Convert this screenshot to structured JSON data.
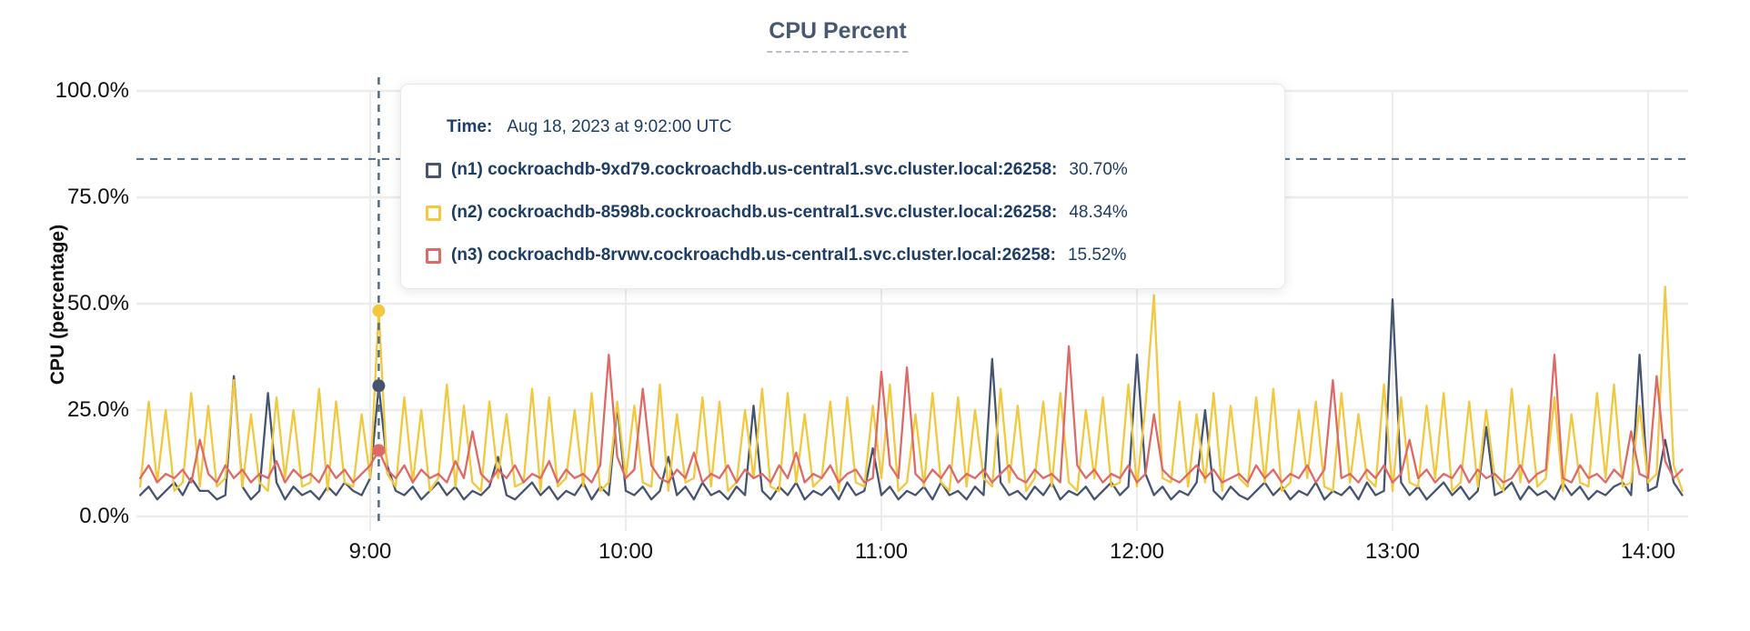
{
  "colors": {
    "title": "#475872",
    "grid": "#ececec",
    "dashed": "#4f6c87",
    "axis_text": "#111111",
    "tooltip_text": "#1d3d66",
    "tooltip_border": "#e7e9ed"
  },
  "chart_data": {
    "type": "line",
    "title": "CPU Percent",
    "ylabel": "CPU (percentage)",
    "ylim": [
      0,
      100
    ],
    "grid": true,
    "y_tick_pcts": [
      100,
      75,
      50,
      25,
      0
    ],
    "y_tick_labels": [
      "100.0%",
      "75.0%",
      "50.0%",
      "25.0%",
      "0.0%"
    ],
    "x_tick_labels": [
      "9:00",
      "10:00",
      "11:00",
      "12:00",
      "13:00",
      "14:00"
    ],
    "x_tick_minutes": [
      540,
      600,
      660,
      720,
      780,
      840
    ],
    "x_start_minutes": 486,
    "x_step_minutes": 2,
    "x_axis_range": "8:06 - 14:08 UTC",
    "threshold_pct": 84,
    "hover": {
      "time_minutes": 542,
      "time_label": "Time:",
      "time_value": "Aug 18, 2023 at 9:02:00 UTC"
    },
    "series": [
      {
        "id": "n1",
        "label": "(n1) cockroachdb-9xd79.cockroachdb.us-central1.svc.cluster.local:26258:",
        "hover_display": "30.70%",
        "hover_value": 30.7,
        "color": "#46546f",
        "values": [
          5,
          7,
          4,
          6,
          8,
          5,
          9,
          6,
          6,
          4,
          5,
          33,
          7,
          4,
          6,
          29,
          8,
          4,
          7,
          5,
          6,
          4,
          7,
          5,
          8,
          6,
          5,
          9,
          30.7,
          12,
          6,
          5,
          7,
          4,
          6,
          8,
          5,
          7,
          4,
          6,
          5,
          7,
          14,
          5,
          4,
          6,
          8,
          5,
          7,
          4,
          6,
          5,
          8,
          4,
          7,
          5,
          26,
          6,
          5,
          7,
          4,
          6,
          14,
          5,
          7,
          4,
          8,
          5,
          6,
          4,
          7,
          5,
          26,
          6,
          4,
          7,
          5,
          8,
          4,
          6,
          5,
          7,
          4,
          8,
          5,
          6,
          16,
          5,
          7,
          4,
          6,
          5,
          7,
          4,
          8,
          5,
          6,
          4,
          7,
          5,
          37,
          8,
          5,
          6,
          4,
          7,
          5,
          8,
          4,
          6,
          5,
          7,
          4,
          6,
          8,
          5,
          7,
          38,
          10,
          5,
          7,
          4,
          6,
          5,
          8,
          25,
          6,
          4,
          7,
          5,
          4,
          6,
          8,
          5,
          7,
          4,
          6,
          5,
          8,
          4,
          6,
          5,
          7,
          4,
          8,
          5,
          6,
          51,
          8,
          5,
          7,
          4,
          6,
          8,
          5,
          7,
          4,
          6,
          21,
          5,
          6,
          8,
          4,
          7,
          5,
          6,
          4,
          8,
          5,
          7,
          4,
          6,
          5,
          7,
          8,
          5,
          38,
          6,
          7,
          18,
          8,
          5
        ]
      },
      {
        "id": "n2",
        "label": "(n2) cockroachdb-8598b.cockroachdb.us-central1.svc.cluster.local:26258:",
        "hover_display": "48.34%",
        "hover_value": 48.34,
        "color": "#f2c83f",
        "values": [
          7,
          27,
          8,
          25,
          6,
          8,
          29,
          7,
          26,
          7,
          9,
          32,
          7,
          24,
          8,
          6,
          28,
          9,
          25,
          7,
          8,
          30,
          6,
          27,
          8,
          7,
          24,
          9,
          48.34,
          10,
          7,
          28,
          8,
          25,
          6,
          9,
          31,
          7,
          26,
          8,
          6,
          27,
          9,
          24,
          7,
          8,
          30,
          6,
          28,
          7,
          9,
          25,
          7,
          29,
          6,
          8,
          27,
          9,
          26,
          8,
          7,
          31,
          6,
          24,
          8,
          9,
          28,
          7,
          27,
          6,
          8,
          25,
          9,
          30,
          7,
          6,
          29,
          8,
          24,
          7,
          9,
          27,
          6,
          28,
          8,
          7,
          26,
          9,
          31,
          6,
          8,
          24,
          7,
          29,
          8,
          6,
          28,
          7,
          25,
          9,
          7,
          30,
          8,
          26,
          6,
          9,
          27,
          7,
          29,
          8,
          6,
          25,
          9,
          28,
          7,
          8,
          31,
          7,
          26,
          52,
          9,
          8,
          27,
          7,
          24,
          8,
          29,
          6,
          26,
          9,
          7,
          28,
          8,
          30,
          6,
          8,
          25,
          9,
          27,
          7,
          6,
          29,
          8,
          24,
          9,
          7,
          31,
          6,
          28,
          8,
          7,
          26,
          9,
          29,
          6,
          8,
          27,
          7,
          25,
          9,
          6,
          30,
          8,
          26,
          7,
          9,
          28,
          6,
          24,
          8,
          7,
          29,
          9,
          31,
          7,
          8,
          26,
          8,
          10,
          54,
          12,
          6
        ]
      },
      {
        "id": "n3",
        "label": "(n3) cockroachdb-8rvwv.cockroachdb.us-central1.svc.cluster.local:26258:",
        "hover_display": "15.52%",
        "hover_value": 15.52,
        "color": "#de6a66",
        "values": [
          9,
          12,
          8,
          10,
          9,
          11,
          8,
          18,
          10,
          8,
          12,
          9,
          11,
          8,
          10,
          9,
          13,
          8,
          11,
          9,
          10,
          8,
          12,
          9,
          11,
          8,
          10,
          12,
          15.52,
          11,
          9,
          12,
          8,
          11,
          9,
          10,
          8,
          13,
          9,
          20,
          10,
          8,
          11,
          9,
          12,
          8,
          10,
          9,
          13,
          8,
          11,
          9,
          10,
          8,
          12,
          38,
          14,
          9,
          11,
          30,
          12,
          9,
          8,
          11,
          9,
          15,
          8,
          10,
          9,
          12,
          8,
          11,
          9,
          10,
          8,
          12,
          9,
          15,
          8,
          10,
          9,
          12,
          8,
          10,
          11,
          8,
          9,
          34,
          12,
          9,
          35,
          10,
          8,
          11,
          9,
          12,
          8,
          10,
          9,
          11,
          8,
          10,
          12,
          9,
          8,
          11,
          9,
          10,
          8,
          40,
          12,
          9,
          11,
          8,
          10,
          9,
          12,
          8,
          10,
          24,
          11,
          9,
          8,
          10,
          12,
          9,
          11,
          8,
          9,
          10,
          8,
          12,
          9,
          11,
          8,
          10,
          9,
          12,
          8,
          11,
          32,
          9,
          10,
          8,
          11,
          9,
          12,
          8,
          10,
          18,
          9,
          11,
          8,
          10,
          9,
          12,
          8,
          11,
          9,
          10,
          8,
          9,
          12,
          8,
          10,
          11,
          38,
          9,
          8,
          12,
          9,
          10,
          8,
          11,
          9,
          20,
          10,
          9,
          33,
          13,
          9,
          11
        ]
      }
    ]
  }
}
